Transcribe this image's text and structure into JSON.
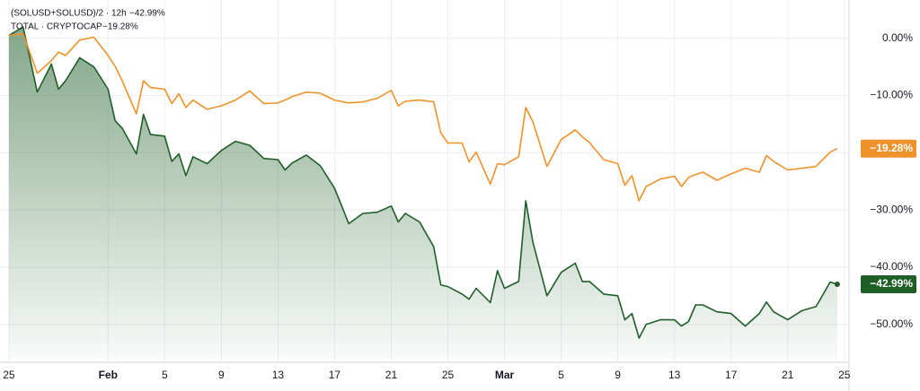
{
  "chart_data": {
    "type": "line",
    "x": [
      0,
      1,
      2,
      3,
      3.5,
      4,
      5,
      6,
      7,
      7.5,
      8,
      9,
      9.5,
      10,
      11,
      11.5,
      12,
      12.5,
      13,
      14,
      15,
      16,
      17,
      18,
      19,
      19.5,
      20,
      21,
      22,
      23,
      24,
      25,
      26,
      27,
      27.5,
      28,
      29,
      30,
      30.5,
      31,
      32,
      32.5,
      33,
      34,
      34.5,
      35,
      36,
      36.5,
      37,
      38,
      39,
      40,
      40.5,
      41,
      42,
      43,
      43.5,
      44,
      44.5,
      45,
      46,
      47,
      47.5,
      48,
      48.5,
      49,
      50,
      51,
      52,
      53,
      53.5,
      54,
      55,
      56,
      57,
      58,
      58.5
    ],
    "series": [
      {
        "name": "(SOLUSD+SOLUSD)/2 · 12h",
        "color": "#1e5e27",
        "area": true,
        "last_value_label": "−42.99%",
        "values": [
          0.5,
          2.0,
          -9.4,
          -4.5,
          -8.9,
          -7.4,
          -3.4,
          -5.0,
          -8.9,
          -14.4,
          -15.7,
          -20.2,
          -13.3,
          -16.8,
          -17.1,
          -21.5,
          -20.2,
          -24.0,
          -20.7,
          -21.9,
          -19.6,
          -18.0,
          -18.7,
          -21.0,
          -21.2,
          -23.0,
          -21.8,
          -20.4,
          -22.3,
          -26.2,
          -32.4,
          -30.6,
          -30.4,
          -29.3,
          -32.1,
          -30.6,
          -32.1,
          -36.4,
          -43.1,
          -43.4,
          -44.7,
          -45.6,
          -43.7,
          -46.2,
          -40.6,
          -43.7,
          -42.5,
          -28.4,
          -35.6,
          -45.0,
          -40.9,
          -39.3,
          -42.5,
          -42.5,
          -44.7,
          -45.0,
          -49.2,
          -48.1,
          -52.4,
          -50.0,
          -49.2,
          -49.2,
          -50.3,
          -49.5,
          -46.6,
          -46.6,
          -47.8,
          -48.1,
          -50.3,
          -48.1,
          -46.1,
          -47.8,
          -49.2,
          -47.6,
          -46.9,
          -42.6,
          -42.99
        ]
      },
      {
        "name": "TOTAL · CRYPTOCAP",
        "color": "#f0922b",
        "area": false,
        "last_value_label": "−19.28%",
        "values": [
          0.5,
          0.8,
          -6.1,
          -3.9,
          -2.4,
          -3.0,
          -0.3,
          0.2,
          -3.0,
          -4.9,
          -7.4,
          -13.2,
          -7.4,
          -8.6,
          -8.9,
          -11.4,
          -9.7,
          -12.1,
          -10.8,
          -12.4,
          -11.8,
          -10.8,
          -9.2,
          -11.4,
          -11.3,
          -10.8,
          -10.2,
          -9.4,
          -9.6,
          -10.8,
          -11.3,
          -11.1,
          -10.5,
          -9.1,
          -11.8,
          -11.0,
          -10.8,
          -11.1,
          -16.5,
          -18.3,
          -18.3,
          -21.6,
          -19.9,
          -25.5,
          -21.9,
          -22.1,
          -20.7,
          -12.1,
          -14.6,
          -22.4,
          -17.7,
          -16.0,
          -17.2,
          -18.2,
          -21.2,
          -21.9,
          -25.7,
          -24.0,
          -28.4,
          -25.9,
          -24.6,
          -24.1,
          -25.9,
          -24.3,
          -23.8,
          -23.4,
          -24.8,
          -23.7,
          -22.7,
          -23.4,
          -20.5,
          -21.5,
          -23.0,
          -22.7,
          -22.4,
          -19.9,
          -19.28
        ]
      }
    ],
    "xlim": [
      -0.63,
      59.33
    ],
    "xticks": [
      {
        "value": 0,
        "label": "25"
      },
      {
        "value": 7,
        "label": "Feb"
      },
      {
        "value": 11,
        "label": "5"
      },
      {
        "value": 15,
        "label": "9"
      },
      {
        "value": 19,
        "label": "13"
      },
      {
        "value": 23,
        "label": "17"
      },
      {
        "value": 27,
        "label": "21"
      },
      {
        "value": 31,
        "label": "25"
      },
      {
        "value": 35,
        "label": "Mar"
      },
      {
        "value": 39,
        "label": "5"
      },
      {
        "value": 43,
        "label": "9"
      },
      {
        "value": 47,
        "label": "13"
      },
      {
        "value": 51,
        "label": "17"
      },
      {
        "value": 55,
        "label": "21"
      },
      {
        "value": 59,
        "label": "25"
      }
    ],
    "ylim": [
      -56,
      6.7
    ],
    "yticks": [
      {
        "value": 0,
        "label": "0.00%"
      },
      {
        "value": -10,
        "label": "−10.00%"
      },
      {
        "value": -20,
        "label": "−20.00%"
      },
      {
        "value": -30,
        "label": "−30.00%"
      },
      {
        "value": -40,
        "label": "−40.00%"
      },
      {
        "value": -50,
        "label": "−50.00%"
      }
    ],
    "grid": true
  }
}
